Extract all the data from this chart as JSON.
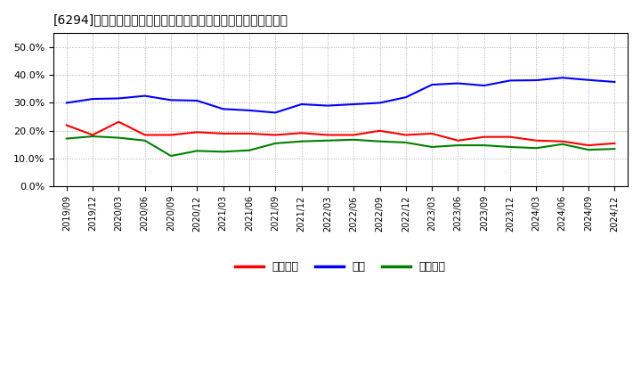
{
  "title": "[6294]  売上債権、在庫、買入債務の総資産に対する比率の推移",
  "x_labels": [
    "2019/09",
    "2019/12",
    "2020/03",
    "2020/06",
    "2020/09",
    "2020/12",
    "2021/03",
    "2021/06",
    "2021/09",
    "2021/12",
    "2022/03",
    "2022/06",
    "2022/09",
    "2022/12",
    "2023/03",
    "2023/06",
    "2023/09",
    "2023/12",
    "2024/03",
    "2024/06",
    "2024/09",
    "2024/12"
  ],
  "receivables": [
    0.22,
    0.185,
    0.232,
    0.185,
    0.185,
    0.195,
    0.19,
    0.19,
    0.185,
    0.192,
    0.185,
    0.185,
    0.2,
    0.185,
    0.19,
    0.165,
    0.178,
    0.178,
    0.165,
    0.162,
    0.148,
    0.155
  ],
  "inventory": [
    0.3,
    0.314,
    0.316,
    0.325,
    0.31,
    0.308,
    0.278,
    0.273,
    0.265,
    0.295,
    0.29,
    0.295,
    0.3,
    0.32,
    0.365,
    0.37,
    0.362,
    0.38,
    0.381,
    0.39,
    0.382,
    0.375
  ],
  "payables": [
    0.172,
    0.18,
    0.175,
    0.165,
    0.11,
    0.128,
    0.125,
    0.13,
    0.155,
    0.162,
    0.165,
    0.168,
    0.162,
    0.158,
    0.142,
    0.148,
    0.148,
    0.142,
    0.138,
    0.152,
    0.132,
    0.135
  ],
  "ylim": [
    0.0,
    0.55
  ],
  "yticks": [
    0.0,
    0.1,
    0.2,
    0.3,
    0.4,
    0.5
  ],
  "legend_labels": [
    "売上債権",
    "在庫",
    "買入債務"
  ],
  "line_colors": [
    "#ff0000",
    "#0000ff",
    "#008000"
  ],
  "background_color": "#ffffff",
  "plot_background": "#ffffff",
  "grid_color": "#aaaaaa",
  "title_text": "[6294]　売上債権、在庫、買入債務の総資産に対する比率の推移"
}
